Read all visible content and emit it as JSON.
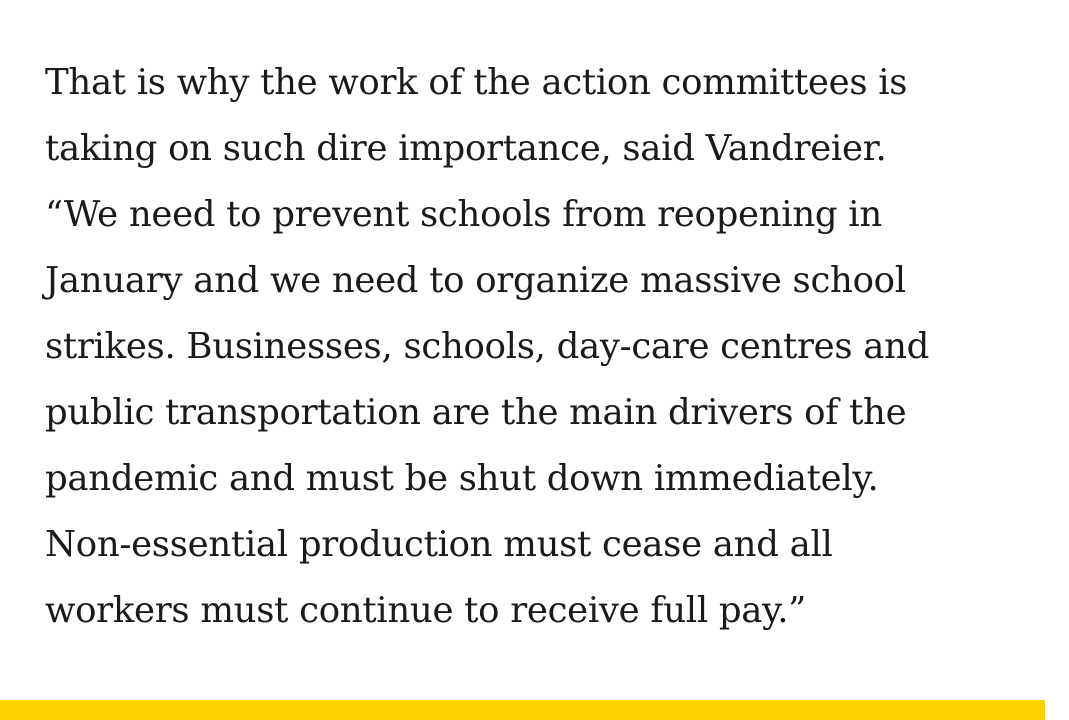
{
  "article": {
    "lines": [
      "That is why the work of the action committees is",
      "taking on such dire importance, said Vandreier.",
      "“We need to prevent schools from reopening in",
      "January and we need to organize massive school",
      "strikes. Businesses, schools, day-care centres and",
      "public transportation are the main drivers of the",
      "pandemic and must be shut down immediately.",
      "Non-essential production must cease and all",
      "workers must continue to receive full pay.”"
    ]
  },
  "colors": {
    "text": "#1a1a1a",
    "background": "#ffffff",
    "accent": "#ffd200"
  }
}
